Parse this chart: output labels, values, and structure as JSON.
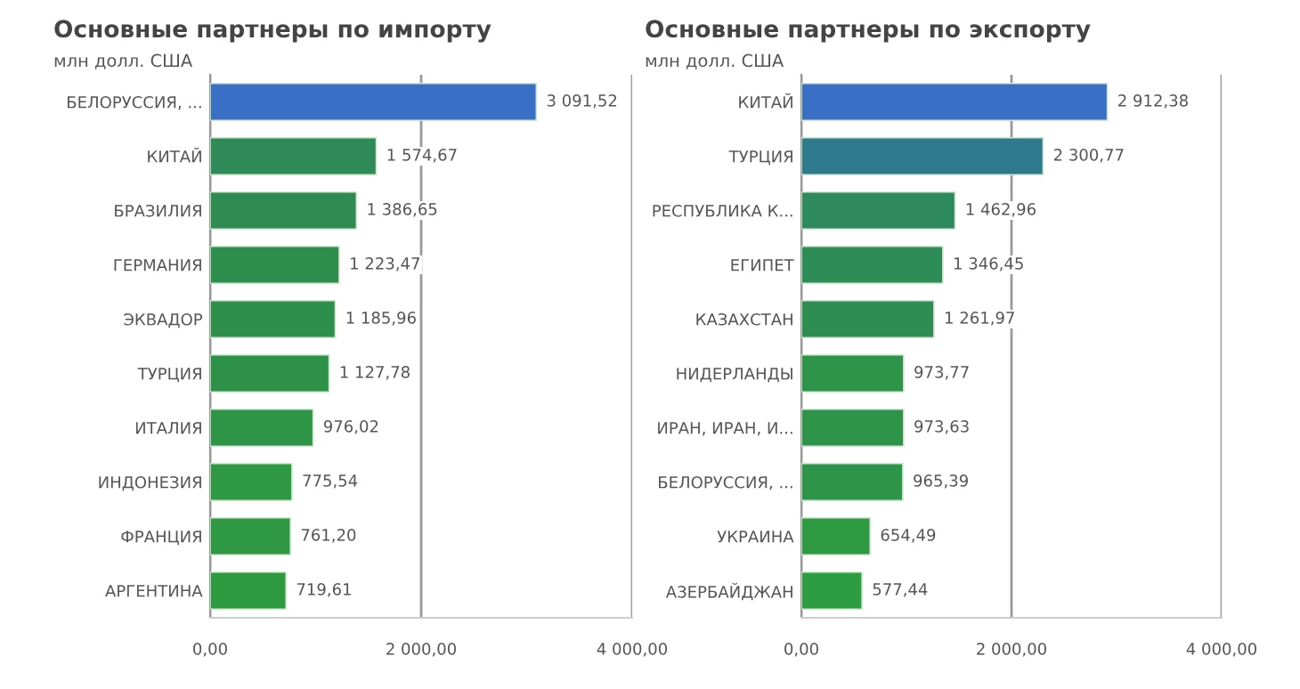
{
  "chart_data": [
    {
      "type": "bar",
      "orientation": "horizontal",
      "title": "Основные партнеры по импорту",
      "subtitle": "млн долл. США",
      "categories": [
        "БЕЛОРУССИЯ, ...",
        "КИТАЙ",
        "БРАЗИЛИЯ",
        "ГЕРМАНИЯ",
        "ЭКВАДОР",
        "ТУРЦИЯ",
        "ИТАЛИЯ",
        "ИНДОНЕЗИЯ",
        "ФРАНЦИЯ",
        "АРГЕНТИНА"
      ],
      "values": [
        3091.52,
        1574.67,
        1386.65,
        1223.47,
        1185.96,
        1127.78,
        976.02,
        775.54,
        761.2,
        719.61
      ],
      "value_labels": [
        "3 091,52",
        "1 574,67",
        "1 386,65",
        "1 223,47",
        "1 185,96",
        "1 127,78",
        "976,02",
        "775,54",
        "761,20",
        "719,61"
      ],
      "colors": [
        "#3a6fc6",
        "#2e8a57",
        "#2e8c52",
        "#2e8e4e",
        "#2e8f4c",
        "#2e914a",
        "#2e9446",
        "#2e9842",
        "#2e9842",
        "#2e9a40"
      ],
      "xlim": [
        0,
        4000
      ],
      "xticks": [
        {
          "value": 0,
          "label": "0,00"
        },
        {
          "value": 2000,
          "label": "2 000,00"
        },
        {
          "value": 4000,
          "label": "4 000,00"
        }
      ],
      "grid": "x"
    },
    {
      "type": "bar",
      "orientation": "horizontal",
      "title": "Основные партнеры по экспорту",
      "subtitle": "млн долл. США",
      "categories": [
        "КИТАЙ",
        "ТУРЦИЯ",
        "РЕСПУБЛИКА К...",
        "ЕГИПЕТ",
        "КАЗАХСТАН",
        "НИДЕРЛАНДЫ",
        "ИРАН, ИРАН, И...",
        "БЕЛОРУССИЯ, ...",
        "УКРАИНА",
        "АЗЕРБАЙДЖАН"
      ],
      "values": [
        2912.38,
        2300.77,
        1462.96,
        1346.45,
        1261.97,
        973.77,
        973.63,
        965.39,
        654.49,
        577.44
      ],
      "value_labels": [
        "2 912,38",
        "2 300,77",
        "1 462,96",
        "1 346,45",
        "1 261,97",
        "973,77",
        "973,63",
        "965,39",
        "654,49",
        "577,44"
      ],
      "colors": [
        "#3a6fc6",
        "#2e7a8c",
        "#2e8a5c",
        "#2e8c56",
        "#2e8e52",
        "#2e944a",
        "#2e944a",
        "#2e944a",
        "#2e9a42",
        "#2e9c40"
      ],
      "xlim": [
        0,
        4000
      ],
      "xticks": [
        {
          "value": 0,
          "label": "0,00"
        },
        {
          "value": 2000,
          "label": "2 000,00"
        },
        {
          "value": 4000,
          "label": "4 000,00"
        }
      ],
      "grid": "x"
    }
  ]
}
